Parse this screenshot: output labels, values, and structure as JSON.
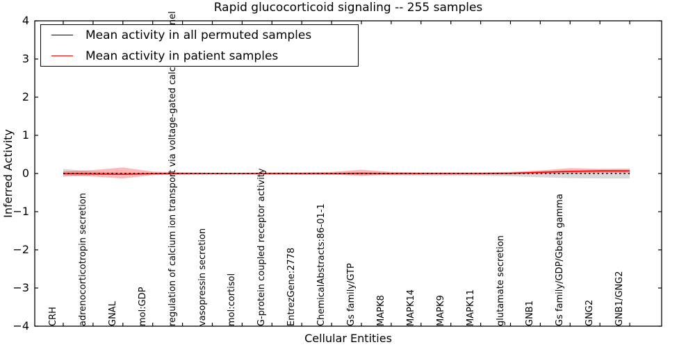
{
  "title": "Rapid glucocorticoid signaling -- 255 samples",
  "legend": {
    "items": [
      {
        "label": "Mean activity in all permuted samples",
        "color": "#000000"
      },
      {
        "label": "Mean activity in patient samples",
        "color": "#ff0000"
      }
    ]
  },
  "axes": {
    "xlabel": "Cellular Entities",
    "ylabel": "Inferred Activity",
    "y_ticks": [
      {
        "value": 4,
        "label": "4"
      },
      {
        "value": 3,
        "label": "3"
      },
      {
        "value": 2,
        "label": "2"
      },
      {
        "value": 1,
        "label": "1"
      },
      {
        "value": 0,
        "label": "0"
      },
      {
        "value": -1,
        "label": "−1"
      },
      {
        "value": -2,
        "label": "−2"
      },
      {
        "value": -3,
        "label": "−3"
      },
      {
        "value": -4,
        "label": "−4"
      }
    ]
  },
  "chart_data": {
    "type": "line",
    "title": "Rapid glucocorticoid signaling -- 255 samples",
    "xlabel": "Cellular Entities",
    "ylabel": "Inferred Activity",
    "ylim": [
      -4,
      4
    ],
    "grid": false,
    "legend_position": "upper left",
    "categories": [
      "CRH",
      "adrenocorticotropin secretion",
      "GNAL",
      "mol:GDP",
      "regulation of calcium ion transport via voltage-gated calcium channel",
      "vasopressin secretion",
      "mol:cortisol",
      "G-protein coupled receptor activity",
      "EntrezGene:2778",
      "ChemicalAbstracts:86-01-1",
      "Gs family/GTP",
      "MAPK8",
      "MAPK14",
      "MAPK9",
      "MAPK11",
      "glutamate secretion",
      "GNB1",
      "Gs family/GDP/Gbeta gamma",
      "GNG2",
      "GNB1/GNG2"
    ],
    "series": [
      {
        "name": "Mean activity in all permuted samples",
        "color": "#000000",
        "line_style": "dashed",
        "values": [
          0,
          0,
          0,
          0,
          0,
          0,
          0,
          0,
          0,
          0,
          0,
          0,
          0,
          0,
          0,
          0,
          0,
          0,
          0,
          0
        ],
        "band_upper": [
          0.12,
          0.05,
          0.03,
          0.02,
          0.02,
          0.02,
          0.02,
          0.02,
          0.02,
          0.02,
          0.03,
          0.02,
          0.02,
          0.02,
          0.02,
          0.03,
          0.06,
          0.08,
          0.09,
          0.09
        ],
        "band_lower": [
          -0.09,
          -0.04,
          -0.03,
          -0.02,
          -0.02,
          -0.02,
          -0.02,
          -0.02,
          -0.03,
          -0.03,
          -0.04,
          -0.05,
          -0.06,
          -0.06,
          -0.06,
          -0.07,
          -0.1,
          -0.12,
          -0.13,
          -0.13
        ],
        "band_color": "rgba(130,130,130,0.30)"
      },
      {
        "name": "Mean activity in patient samples",
        "color": "#ff0000",
        "line_style": "solid",
        "values": [
          0,
          -0.01,
          -0.02,
          -0.005,
          0,
          0,
          0,
          0,
          0,
          0,
          0.005,
          0,
          0,
          0,
          0,
          0.005,
          0.03,
          0.055,
          0.07,
          0.07
        ],
        "band_upper": [
          0.06,
          0.09,
          0.16,
          0.05,
          0.03,
          0.02,
          0.02,
          0.03,
          0.03,
          0.04,
          0.1,
          0.04,
          0.03,
          0.03,
          0.03,
          0.04,
          0.08,
          0.14,
          0.12,
          0.13
        ],
        "band_lower": [
          -0.05,
          -0.08,
          -0.13,
          -0.04,
          -0.03,
          -0.02,
          -0.02,
          -0.03,
          -0.03,
          -0.03,
          -0.06,
          -0.03,
          -0.02,
          -0.02,
          -0.02,
          -0.02,
          -0.01,
          0.0,
          0.02,
          0.02
        ],
        "band_color": "rgba(255,0,0,0.28)"
      }
    ]
  }
}
